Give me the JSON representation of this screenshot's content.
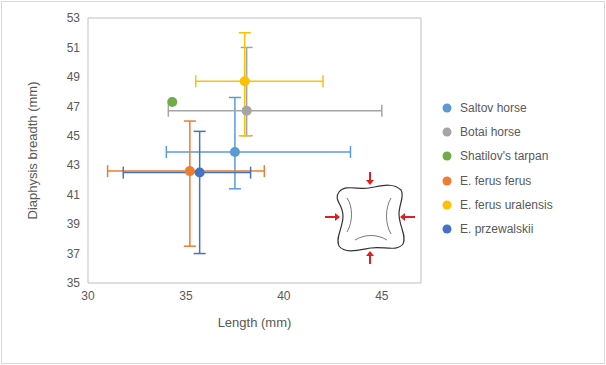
{
  "chart_data": {
    "type": "scatter",
    "x_label": "Length (mm)",
    "y_label": "Diaphysis breadth (mm)",
    "xlim": [
      30,
      47
    ],
    "xticks": [
      30,
      35,
      40,
      45
    ],
    "ylim": [
      35,
      53
    ],
    "yticks": [
      35,
      37,
      39,
      41,
      43,
      45,
      47,
      49,
      51,
      53
    ],
    "grid": false,
    "legend": "right",
    "series": [
      {
        "name": "Saltov horse",
        "color": "#5B9BD5",
        "x": [
          37.5
        ],
        "y": [
          43.9
        ],
        "x_error": [
          [
            3.5,
            5.9
          ]
        ],
        "y_error": [
          [
            2.5,
            3.7
          ]
        ]
      },
      {
        "name": "Botai horse",
        "color": "#A5A5A5",
        "x": [
          38.1
        ],
        "y": [
          46.7
        ],
        "x_error": [
          [
            4.0,
            6.9
          ]
        ],
        "y_error": [
          [
            1.7,
            4.3
          ]
        ]
      },
      {
        "name": "Shatilov's tarpan",
        "color": "#70AD47",
        "x": [
          34.3
        ],
        "y": [
          47.3
        ]
      },
      {
        "name": "E. ferus ferus",
        "color": "#ED7D31",
        "x": [
          35.2
        ],
        "y": [
          42.6
        ],
        "x_error": [
          [
            4.2,
            3.8
          ]
        ],
        "y_error": [
          [
            5.1,
            3.4
          ]
        ]
      },
      {
        "name": "E. ferus uralensis",
        "color": "#FFC000",
        "x": [
          38.0
        ],
        "y": [
          48.7
        ],
        "x_error": [
          [
            2.5,
            4.0
          ]
        ],
        "y_error": [
          [
            3.7,
            3.3
          ]
        ]
      },
      {
        "name": "E. przewalskii",
        "color": "#4472C4",
        "x": [
          35.7
        ],
        "y": [
          42.5
        ],
        "x_error": [
          [
            3.9,
            2.6
          ]
        ],
        "y_error": [
          [
            5.5,
            2.8
          ]
        ]
      }
    ]
  }
}
